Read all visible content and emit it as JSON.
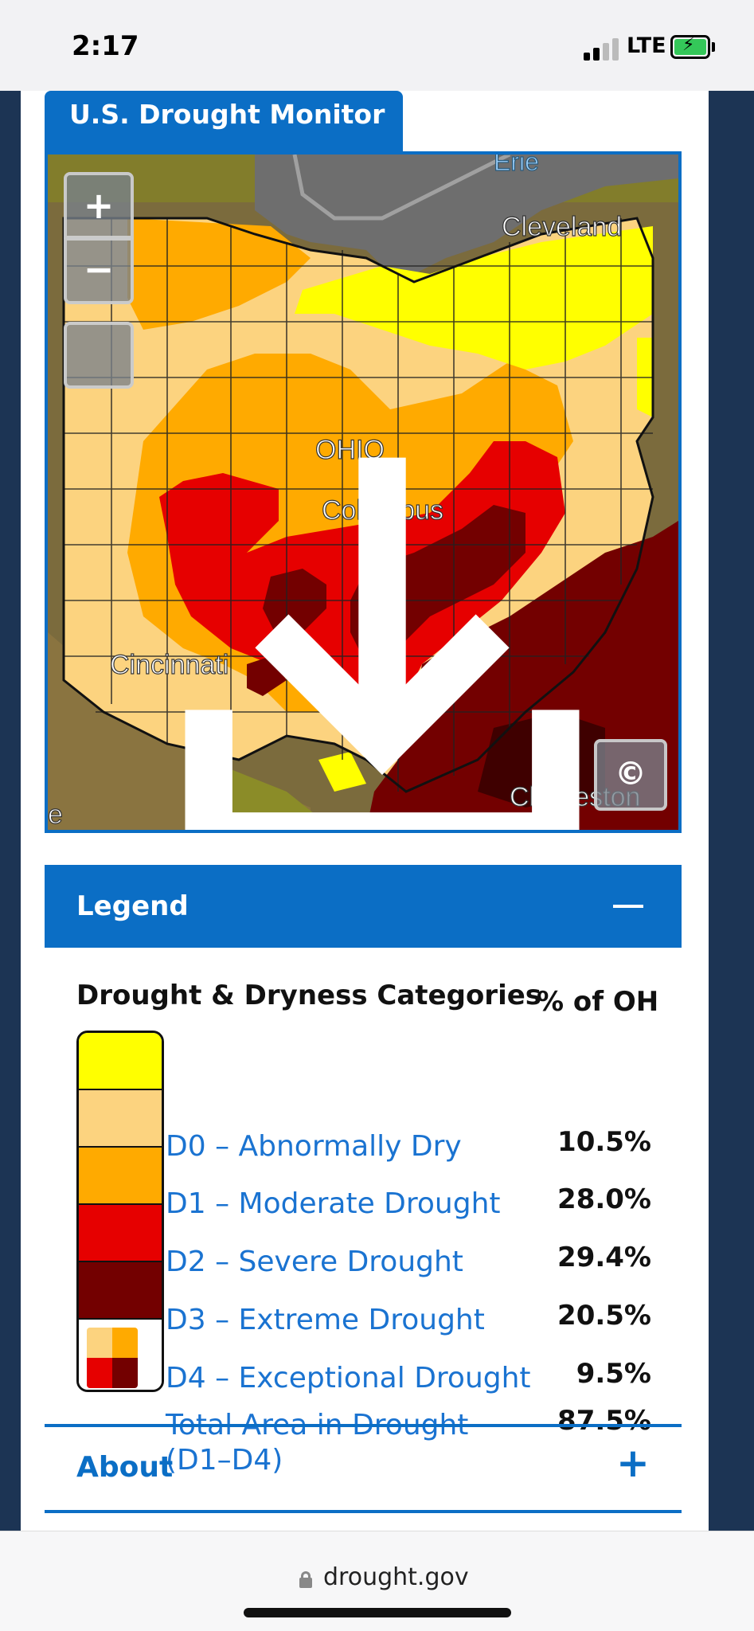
{
  "status_bar": {
    "time": "2:17",
    "network": "LTE",
    "icons": [
      "signal-icon",
      "battery-charging-icon"
    ]
  },
  "monitor": {
    "tab_title": "U.S. Drought Monitor",
    "map": {
      "labels": {
        "lake": "Erie",
        "state": "OHIO",
        "city_1": "Cleveland",
        "city_2": "Columbus",
        "city_3": "Cincinnati",
        "city_4": "Charleston",
        "edge": "e"
      },
      "controls": {
        "zoom_in": "+",
        "zoom_out": "−",
        "download_icon": "download-icon",
        "copyright": "©"
      }
    }
  },
  "legend": {
    "header": "Legend",
    "collapse_icon": "minus-icon",
    "category_title": "Drought & Dryness Categories",
    "percent_title": "% of OH",
    "colors": {
      "d0": "#ffff00",
      "d1": "#fcd37f",
      "d2": "#ffaa00",
      "d3": "#e60000",
      "d4": "#730000"
    },
    "categories": [
      {
        "label": "D0 – Abnormally Dry",
        "percent": "10.5%"
      },
      {
        "label": "D1 – Moderate Drought",
        "percent": "28.0%"
      },
      {
        "label": "D2 – Severe Drought",
        "percent": "29.4%"
      },
      {
        "label": "D3 – Extreme Drought",
        "percent": "20.5%"
      },
      {
        "label": "D4 – Exceptional Drought",
        "percent": "9.5%"
      },
      {
        "label": "Total Area in Drought (D1–D4)",
        "percent": "87.5%"
      }
    ]
  },
  "about": {
    "title": "About",
    "expand_icon": "plus-icon"
  },
  "browser": {
    "url": "drought.gov",
    "lock_icon": "lock-icon"
  }
}
